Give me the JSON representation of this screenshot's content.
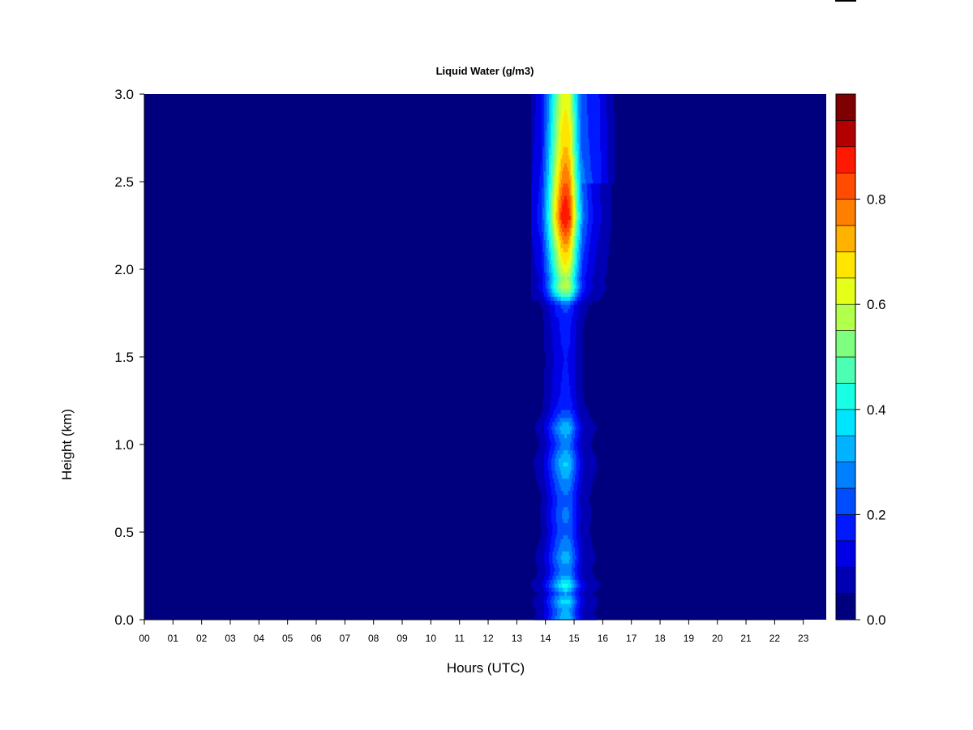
{
  "chart_data": {
    "type": "heatmap",
    "title": "Liquid Water (g/m3)",
    "xlabel": "Hours (UTC)",
    "ylabel": "Height (km)",
    "x_tick_labels": [
      "00",
      "01",
      "02",
      "03",
      "04",
      "05",
      "06",
      "07",
      "08",
      "09",
      "10",
      "11",
      "12",
      "13",
      "14",
      "15",
      "16",
      "17",
      "18",
      "19",
      "20",
      "21",
      "22",
      "23"
    ],
    "x_ticks": [
      0,
      1,
      2,
      3,
      4,
      5,
      6,
      7,
      8,
      9,
      10,
      11,
      12,
      13,
      14,
      15,
      16,
      17,
      18,
      19,
      20,
      21,
      22,
      23
    ],
    "xlim": [
      0,
      23.8
    ],
    "y_tick_labels": [
      "0.0",
      "0.5",
      "1.0",
      "1.5",
      "2.0",
      "2.5",
      "3.0"
    ],
    "y_ticks": [
      0.0,
      0.5,
      1.0,
      1.5,
      2.0,
      2.5,
      3.0
    ],
    "ylim": [
      0,
      3.0
    ],
    "colorbar": {
      "levels": [
        0.0,
        0.05,
        0.1,
        0.15,
        0.2,
        0.25,
        0.3,
        0.35,
        0.4,
        0.45,
        0.5,
        0.55,
        0.6,
        0.65,
        0.7,
        0.75,
        0.8,
        0.85,
        0.9,
        0.95
      ],
      "colors": [
        "#00007f",
        "#0000b2",
        "#0000e5",
        "#0019ff",
        "#004cff",
        "#007fff",
        "#00b2ff",
        "#00e5ff",
        "#19ffe5",
        "#4cffb2",
        "#7fff7f",
        "#b2ff4c",
        "#e5ff19",
        "#ffe500",
        "#ffb200",
        "#ff7f00",
        "#ff4c00",
        "#ff1900",
        "#b20000",
        "#7f0000"
      ],
      "tick_labels": [
        "0.0",
        "0.2",
        "0.4",
        "0.6",
        "0.8"
      ],
      "ticks": [
        0.0,
        0.2,
        0.4,
        0.6,
        0.8
      ]
    },
    "background_value": 0.0,
    "profile_times": [
      13.5,
      13.85,
      14.1,
      14.35,
      14.55,
      14.65,
      14.75,
      14.85,
      14.95,
      15.1,
      15.3,
      15.6,
      16.0,
      16.4
    ],
    "profile_heights": [
      0.0,
      0.05,
      0.1,
      0.15,
      0.2,
      0.25,
      0.3,
      0.35,
      0.4,
      0.5,
      0.6,
      0.7,
      0.8,
      0.9,
      1.0,
      1.05,
      1.1,
      1.2,
      1.3,
      1.5,
      1.7,
      1.8,
      1.85,
      1.9,
      1.95,
      2.0,
      2.1,
      2.2,
      2.3,
      2.4,
      2.5,
      2.6,
      2.7,
      2.8,
      2.9,
      3.0
    ],
    "peak_profile": [
      0.35,
      0.3,
      0.38,
      0.3,
      0.42,
      0.3,
      0.28,
      0.33,
      0.3,
      0.24,
      0.26,
      0.24,
      0.3,
      0.36,
      0.26,
      0.3,
      0.34,
      0.2,
      0.16,
      0.15,
      0.17,
      0.22,
      0.45,
      0.6,
      0.55,
      0.62,
      0.7,
      0.8,
      0.9,
      0.86,
      0.8,
      0.75,
      0.7,
      0.68,
      0.65,
      0.63
    ],
    "time_weights": [
      0.12,
      0.2,
      0.45,
      0.75,
      0.95,
      1.0,
      1.0,
      0.95,
      0.8,
      0.55,
      0.3,
      0.18,
      0.1,
      0.04
    ]
  }
}
